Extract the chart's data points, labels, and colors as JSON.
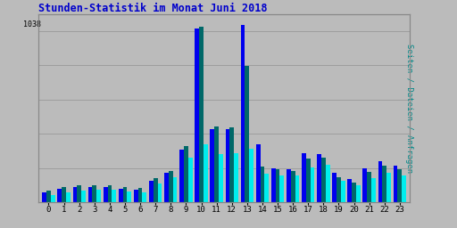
{
  "title": "Stunden-Statistik im Monat Juni 2018",
  "title_color": "#0000CC",
  "ylabel_right": "Seiten / Dateien / Anfragen",
  "ylabel_right_color": "#008888",
  "background_color": "#BBBBBB",
  "plot_bg_color": "#BBBBBB",
  "grid_color": "#999999",
  "hours": [
    0,
    1,
    2,
    3,
    4,
    5,
    6,
    7,
    8,
    9,
    10,
    11,
    12,
    13,
    14,
    15,
    16,
    17,
    18,
    19,
    20,
    21,
    22,
    23
  ],
  "seiten": [
    58,
    78,
    88,
    88,
    92,
    80,
    76,
    128,
    172,
    308,
    1015,
    428,
    428,
    1038,
    338,
    198,
    192,
    288,
    282,
    172,
    138,
    198,
    242,
    212
  ],
  "dateien": [
    68,
    88,
    98,
    98,
    100,
    88,
    82,
    142,
    182,
    328,
    1028,
    442,
    438,
    798,
    208,
    192,
    182,
    258,
    262,
    148,
    118,
    178,
    212,
    192
  ],
  "anfragen": [
    42,
    58,
    68,
    72,
    72,
    62,
    58,
    108,
    148,
    262,
    338,
    282,
    288,
    312,
    168,
    158,
    158,
    202,
    218,
    128,
    98,
    142,
    172,
    158
  ],
  "color_seiten": "#0000EE",
  "color_dateien": "#006868",
  "color_anfragen": "#00EEEE",
  "bar_width": 0.28,
  "ymax": 1100,
  "figsize": [
    5.12,
    2.56
  ],
  "dpi": 100
}
